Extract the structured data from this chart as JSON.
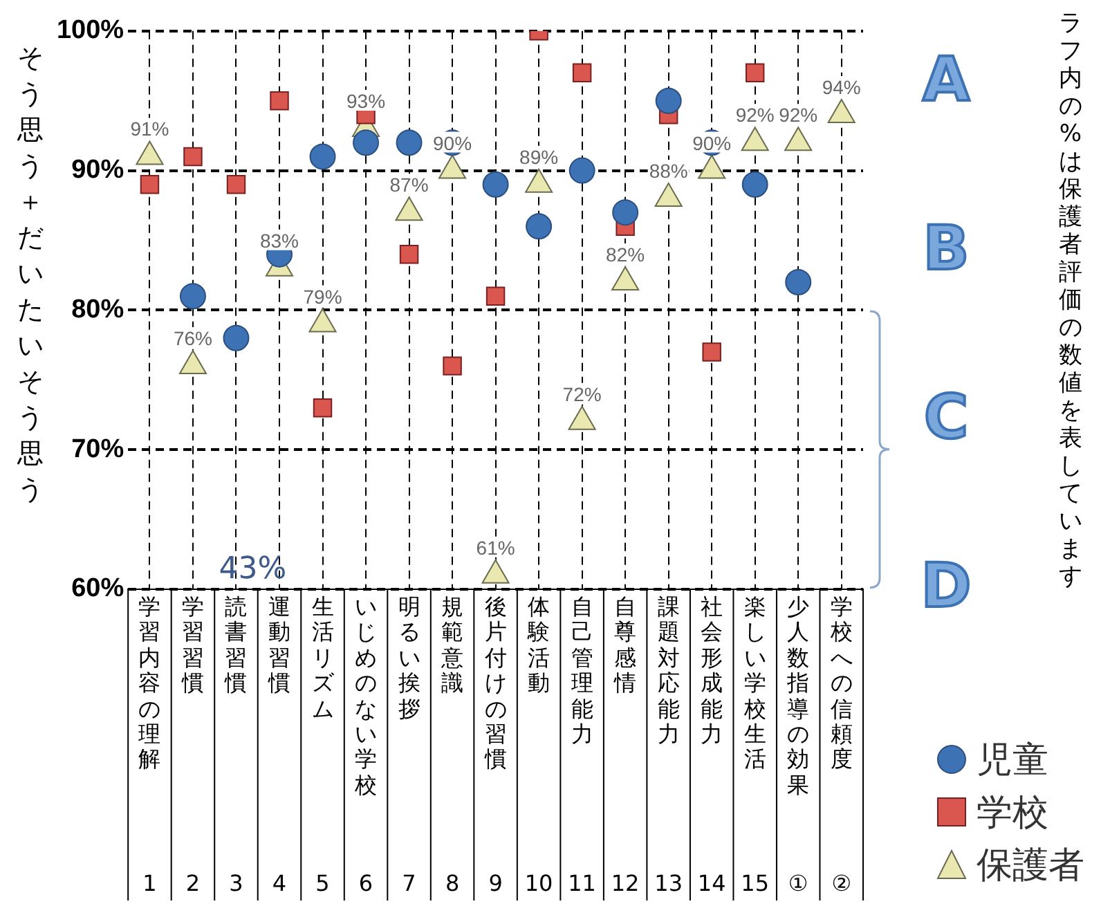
{
  "chart_data": {
    "type": "scatter",
    "ylabel": "そう思う＋だいたいそう思う",
    "categories": [
      "学習内容の理解 1",
      "学習習慣 2",
      "読書習慣 3",
      "運動習慣 4",
      "生活リズム 5",
      "いじめのない学校 6",
      "明るい挨拶 7",
      "規範意識 8",
      "後片付けの習慣 9",
      "体験活動 10",
      "自己管理能力 11",
      "自尊感情 12",
      "課題対応能力 13",
      "社会形成能力 14",
      "楽しい学校生活 15",
      "少人数指導の効果 ①",
      "学校への信頼度 ②"
    ],
    "series": [
      {
        "name": "児童",
        "color": "#3d72b4",
        "marker": "circle",
        "values": [
          null,
          81,
          78,
          84,
          91,
          92,
          92,
          92,
          89,
          86,
          90,
          87,
          95,
          92,
          89,
          82,
          null
        ]
      },
      {
        "name": "学校",
        "color": "#d9574f",
        "marker": "square",
        "values": [
          89,
          91,
          89,
          95,
          73,
          94,
          84,
          76,
          81,
          100,
          97,
          86,
          94,
          77,
          97,
          null,
          null
        ]
      },
      {
        "name": "保護者",
        "color": "#e8e8b0",
        "marker": "triangle",
        "values": [
          91,
          76,
          null,
          83,
          79,
          93,
          87,
          90,
          61,
          89,
          72,
          82,
          88,
          90,
          92,
          92,
          94
        ],
        "value_labels": [
          "91%",
          "76%",
          "43%",
          "83%",
          "79%",
          "93%",
          "87%",
          "90%",
          "61%",
          "89%",
          "72%",
          "82%",
          "88%",
          "90%",
          "92%",
          "92%",
          "94%"
        ]
      }
    ],
    "ylim": [
      60,
      100
    ],
    "yticks": [
      {
        "value": 60,
        "label": "60%"
      },
      {
        "value": 70,
        "label": "70%"
      },
      {
        "value": 80,
        "label": "80%"
      },
      {
        "value": 90,
        "label": "90%"
      },
      {
        "value": 100,
        "label": "100%"
      }
    ],
    "grid": true,
    "line_style": "dashed",
    "legend": "bottom right",
    "annotations": [
      "A",
      "B",
      "C",
      "D",
      "ラフ内の%は保護者評価の数値を表しています"
    ]
  }
}
